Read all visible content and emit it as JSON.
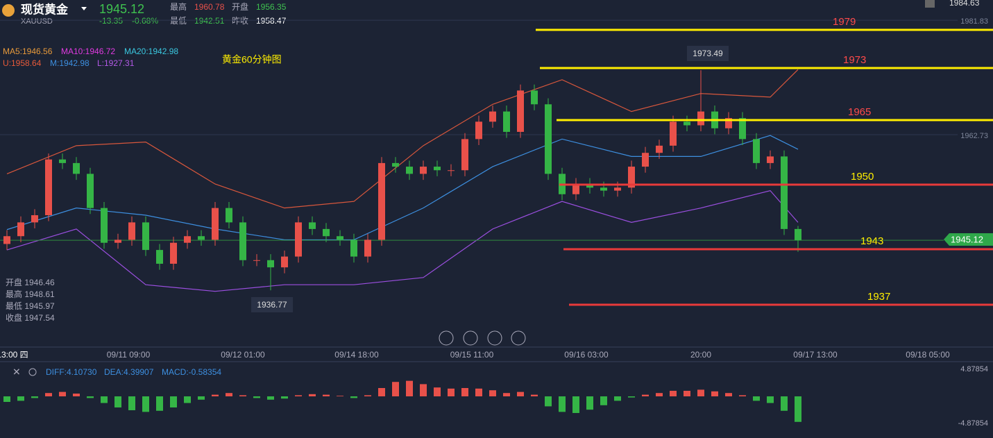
{
  "header": {
    "name": "现货黄金",
    "price": "1945.12",
    "symbol": "XAUUSD",
    "change": "-13.35",
    "change_pct": "-0.68%",
    "high_label": "最高",
    "high": "1960.78",
    "open_label": "开盘",
    "open": "1956.35",
    "low_label": "最低",
    "low": "1942.51",
    "prev_label": "昨收",
    "prev": "1958.47",
    "top_right": "1984.63"
  },
  "chart_data": {
    "type": "candlestick",
    "title": "黄金60分钟图",
    "indicators": [
      "MA5:1946.56",
      "MA10:1946.72",
      "MA20:1942.98",
      "U:1958.64",
      "M:1942.98",
      "L:1927.31"
    ],
    "info": [
      "开盘 1946.46",
      "最高 1948.61",
      "最低 1945.97",
      "收盘 1947.54"
    ],
    "callouts": [
      "1973.49",
      "1936.77"
    ],
    "up_color": "#e8514a",
    "down_color": "#35b546",
    "ohlc": {
      "open": [
        1944.5,
        1945.8,
        1948.1,
        1949.3,
        1958.6,
        1958.0,
        1956.2,
        1950.5,
        1944.7,
        1945.2,
        1948.1,
        1943.5,
        1941.2,
        1944.7,
        1945.8,
        1945.2,
        1950.5,
        1948.1,
        1941.8,
        1941.8,
        1940.6,
        1942.4,
        1948.1,
        1947.0,
        1945.8,
        1945.2,
        1942.4,
        1945.2,
        1958.0,
        1957.4,
        1956.2,
        1957.4,
        1956.8,
        1956.8,
        1962.0,
        1964.9,
        1966.6,
        1963.2,
        1970.1,
        1967.8,
        1956.2,
        1952.8,
        1954.5,
        1953.9,
        1953.4,
        1953.9,
        1957.4,
        1959.7,
        1960.9,
        1964.9,
        1964.3,
        1966.6,
        1963.8,
        1965.5,
        1962.0,
        1958.0,
        1959.1,
        1947.0
      ],
      "high": [
        1946.8,
        1949.1,
        1950.3,
        1959.6,
        1959.6,
        1959.0,
        1957.2,
        1951.5,
        1946.2,
        1949.1,
        1949.1,
        1944.5,
        1945.7,
        1946.8,
        1946.8,
        1951.5,
        1951.5,
        1949.1,
        1942.8,
        1942.8,
        1943.4,
        1949.1,
        1949.1,
        1948.0,
        1946.8,
        1946.2,
        1946.2,
        1959.0,
        1959.0,
        1958.4,
        1958.4,
        1958.4,
        1957.8,
        1963.0,
        1965.9,
        1967.6,
        1967.6,
        1971.1,
        1971.1,
        1968.8,
        1957.2,
        1955.5,
        1955.5,
        1954.9,
        1954.9,
        1958.4,
        1960.7,
        1961.9,
        1965.9,
        1965.9,
        1973.49,
        1967.6,
        1966.5,
        1966.5,
        1963.0,
        1960.1,
        1960.1,
        1947.5
      ],
      "low": [
        1943.5,
        1944.8,
        1947.1,
        1948.3,
        1957.0,
        1955.2,
        1949.5,
        1943.7,
        1943.7,
        1944.2,
        1942.5,
        1940.2,
        1940.2,
        1943.7,
        1944.2,
        1944.2,
        1947.1,
        1940.8,
        1940.8,
        1936.77,
        1939.6,
        1941.4,
        1946.0,
        1944.8,
        1944.2,
        1941.4,
        1941.4,
        1944.2,
        1956.4,
        1955.2,
        1955.2,
        1955.8,
        1955.8,
        1955.8,
        1961.0,
        1963.9,
        1962.2,
        1962.2,
        1966.8,
        1955.2,
        1951.8,
        1951.8,
        1952.9,
        1952.4,
        1952.4,
        1952.9,
        1956.4,
        1958.7,
        1959.9,
        1963.3,
        1963.3,
        1962.8,
        1962.8,
        1961.0,
        1957.0,
        1957.0,
        1946.0,
        1943.2
      ],
      "close": [
        1945.8,
        1948.1,
        1949.3,
        1958.6,
        1958.0,
        1956.2,
        1950.5,
        1944.7,
        1945.2,
        1948.1,
        1943.5,
        1941.2,
        1944.7,
        1945.8,
        1945.2,
        1950.5,
        1948.1,
        1941.8,
        1941.8,
        1940.6,
        1942.4,
        1948.1,
        1947.0,
        1945.8,
        1945.2,
        1942.4,
        1945.2,
        1958.0,
        1957.4,
        1956.2,
        1957.4,
        1956.8,
        1956.8,
        1962.0,
        1964.9,
        1966.6,
        1963.2,
        1970.1,
        1967.8,
        1956.2,
        1952.8,
        1954.5,
        1953.9,
        1953.4,
        1953.9,
        1957.4,
        1959.7,
        1960.9,
        1964.9,
        1964.3,
        1966.6,
        1963.8,
        1965.5,
        1962.0,
        1958.0,
        1959.1,
        1947.0,
        1945.12
      ]
    },
    "bands": {
      "x": [
        0,
        5,
        10,
        15,
        20,
        25,
        30,
        35,
        40,
        45,
        50,
        55,
        57
      ],
      "series": [
        {
          "name": "U",
          "color": "#d9573c",
          "values": [
            1956.2,
            1960.9,
            1961.5,
            1954.5,
            1950.5,
            1951.6,
            1960.9,
            1967.8,
            1971.9,
            1966.6,
            1969.6,
            1969.0,
            1973.6
          ]
        },
        {
          "name": "M",
          "color": "#3d8fe0",
          "values": [
            1946.9,
            1950.5,
            1949.3,
            1947.0,
            1945.2,
            1945.2,
            1950.5,
            1957.4,
            1962.0,
            1959.1,
            1959.1,
            1962.6,
            1960.3
          ]
        },
        {
          "name": "L",
          "color": "#9b4fe0",
          "values": [
            1943.5,
            1947.0,
            1937.7,
            1936.6,
            1937.7,
            1937.7,
            1938.9,
            1947.0,
            1951.6,
            1948.1,
            1950.5,
            1953.4,
            1948.1
          ]
        }
      ]
    },
    "ylim": [
      1927.3,
      1985.2
    ],
    "yticks": [
      1962.73,
      1981.83
    ],
    "levels": [
      {
        "label": "1979",
        "color": "#ffee00",
        "text_color": "#ff4a4a"
      },
      {
        "label": "1973",
        "color": "#ffee00",
        "text_color": "#ff4a4a"
      },
      {
        "label": "1965",
        "color": "#ffee00",
        "text_color": "#ff4a4a"
      },
      {
        "label": "1950",
        "color": "#e83a3a",
        "text_color": "#ffee00"
      },
      {
        "label": "1943",
        "color": "#e83a3a",
        "text_color": "#ffee00"
      },
      {
        "label": "1937",
        "color": "#e83a3a",
        "text_color": "#ffee00"
      }
    ],
    "xlabels": [
      "13:00 四",
      "09/11 09:00",
      "09/12 01:00",
      "09/14 18:00",
      "09/15 11:00",
      "09/16 03:00",
      "20:00",
      "09/17 13:00",
      "09/18 05:00"
    ],
    "macd": {
      "legend": [
        "DIFF:4.10730",
        "DEA:4.39907",
        "MACD:-0.58354"
      ],
      "ylim": [
        -4.87854,
        4.87854
      ],
      "yticks": [
        4.87854,
        -4.87854
      ],
      "values": [
        -1.0,
        -0.8,
        -0.3,
        0.6,
        0.8,
        0.5,
        -0.3,
        -1.2,
        -2.0,
        -2.5,
        -2.8,
        -2.6,
        -2.0,
        -1.2,
        -0.6,
        0.3,
        0.6,
        0.2,
        -0.3,
        -0.6,
        -0.4,
        0.2,
        0.4,
        0.3,
        0.1,
        -0.3,
        0.2,
        1.5,
        2.6,
        2.8,
        2.2,
        1.6,
        1.4,
        1.5,
        1.4,
        1.1,
        0.6,
        0.8,
        0.3,
        -1.8,
        -2.8,
        -3.0,
        -2.4,
        -1.6,
        -0.8,
        -0.2,
        0.3,
        0.6,
        1.0,
        1.0,
        1.2,
        0.9,
        0.6,
        0.2,
        -0.8,
        -1.2,
        -2.6,
        -4.6
      ]
    }
  }
}
